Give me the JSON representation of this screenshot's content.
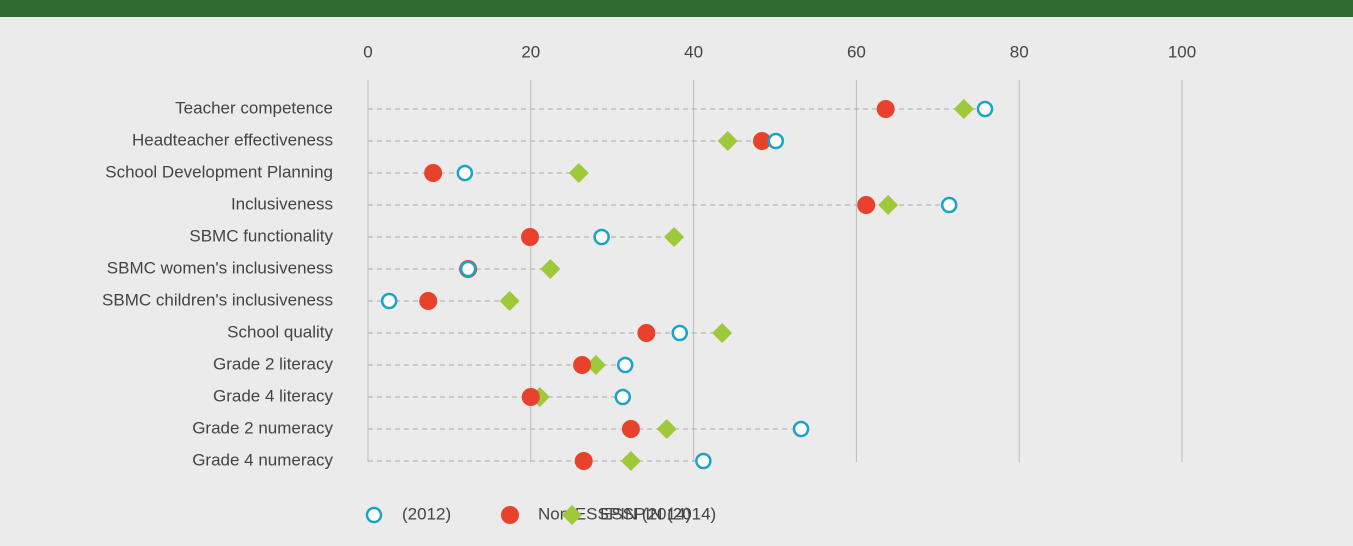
{
  "chart_data": {
    "type": "dot",
    "categories": [
      "Teacher competence",
      "Headteacher effectiveness",
      "School Development Planning",
      "Inclusiveness",
      "SBMC functionality",
      "SBMC women's inclusiveness",
      "SBMC children's inclusiveness",
      "School quality",
      "Grade 2 literacy",
      "Grade 4 literacy",
      "Grade 2 numeracy",
      "Grade 4 numeracy"
    ],
    "series": [
      {
        "name": "(2012)",
        "color": "#1aa3c9",
        "marker": "open-circle",
        "values": [
          75.8,
          50.1,
          11.9,
          71.4,
          28.7,
          12.3,
          2.6,
          38.3,
          31.6,
          31.3,
          53.2,
          41.2
        ]
      },
      {
        "name": "Non-ESSPIN (2014)",
        "color": "#e8412c",
        "marker": "circle",
        "values": [
          63.6,
          48.4,
          8.0,
          61.2,
          19.9,
          12.3,
          7.4,
          34.2,
          26.3,
          20.0,
          32.3,
          26.5
        ]
      },
      {
        "name": "ESSPIN (2014)",
        "color": "#9dc93b",
        "marker": "diamond",
        "values": [
          73.2,
          44.2,
          25.9,
          63.9,
          37.6,
          22.4,
          17.4,
          43.5,
          28.0,
          21.1,
          36.7,
          32.3
        ]
      }
    ],
    "xlim": [
      0,
      119
    ],
    "xticks": [
      0,
      20,
      40,
      60,
      80,
      100
    ],
    "grid": true
  }
}
